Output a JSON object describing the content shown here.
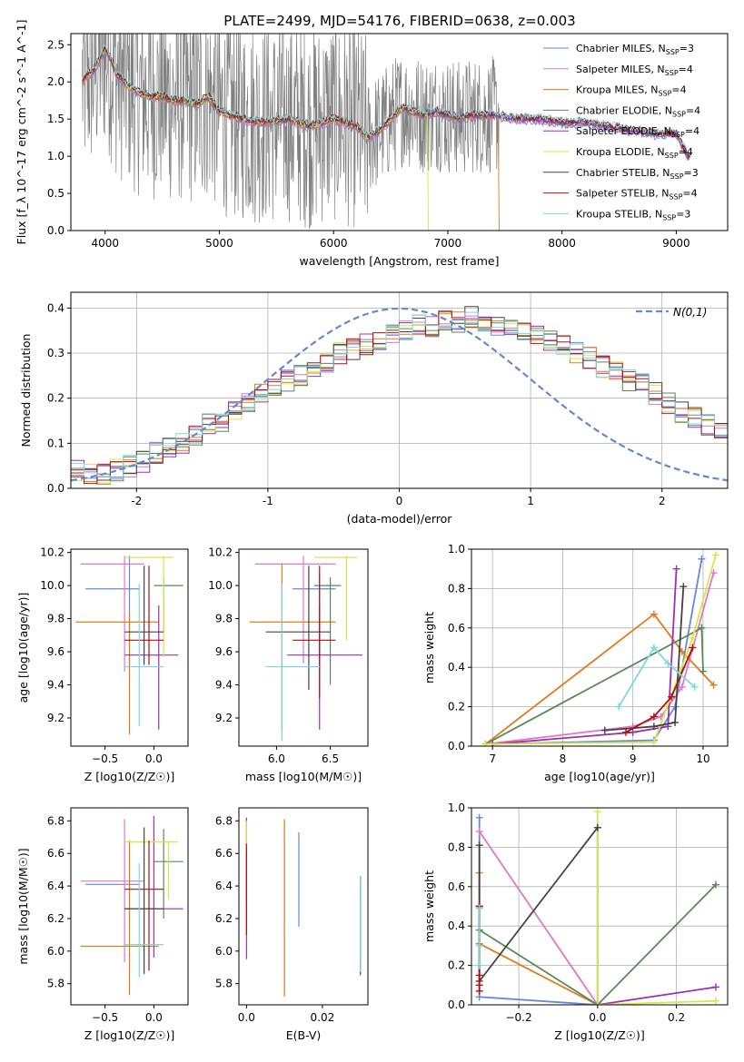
{
  "figure_title": "PLATE=2499, MJD=54176, FIBERID=0638, z=0.003",
  "models": [
    {
      "name": "Chabrier MILES, N_SSP=3",
      "base": "Chabrier MILES, N",
      "sub": "SSP",
      "tail": "=3",
      "color": "#6688dd"
    },
    {
      "name": "Salpeter MILES, N_SSP=4",
      "base": "Salpeter MILES, N",
      "sub": "SSP",
      "tail": "=4",
      "color": "#e377c2"
    },
    {
      "name": "Kroupa MILES, N_SSP=4",
      "base": "Kroupa MILES, N",
      "sub": "SSP",
      "tail": "=4",
      "color": "#e07b1a"
    },
    {
      "name": "Chabrier ELODIE, N_SSP=4",
      "base": "Chabrier ELODIE, N",
      "sub": "SSP",
      "tail": "=4",
      "color": "#5a8a5a"
    },
    {
      "name": "Salpeter ELODIE, N_SSP=4",
      "base": "Salpeter ELODIE, N",
      "sub": "SSP",
      "tail": "=4",
      "color": "#9b30b0"
    },
    {
      "name": "Kroupa ELODIE, N_SSP=4",
      "base": "Kroupa ELODIE, N",
      "sub": "SSP",
      "tail": "=4",
      "color": "#d4e84a"
    },
    {
      "name": "Chabrier STELIB, N_SSP=3",
      "base": "Chabrier STELIB, N",
      "sub": "SSP",
      "tail": "=3",
      "color": "#444444"
    },
    {
      "name": "Salpeter STELIB, N_SSP=4",
      "base": "Salpeter STELIB, N",
      "sub": "SSP",
      "tail": "=4",
      "color": "#b01010"
    },
    {
      "name": "Kroupa STELIB, N_SSP=3",
      "base": "Kroupa STELIB, N",
      "sub": "SSP",
      "tail": "=3",
      "color": "#7dd8dd"
    }
  ],
  "chart_data": [
    {
      "id": "spectrum",
      "type": "line",
      "title": "PLATE=2499, MJD=54176, FIBERID=0638, z=0.003",
      "xlabel": "wavelength [Angstrom, rest frame]",
      "ylabel": "Flux [f_λ 10^-17 erg cm^-2 s^-1 A^-1]",
      "xlim": [
        3700,
        9450
      ],
      "ylim": [
        0,
        2.65
      ],
      "xticks": [
        4000,
        5000,
        6000,
        7000,
        8000,
        9000
      ],
      "yticks": [
        0.0,
        0.5,
        1.0,
        1.5,
        2.0,
        2.5
      ],
      "grid": false,
      "legend": "top-right",
      "data_color": "#808080",
      "model_continuum": {
        "x": [
          3800,
          3850,
          3900,
          3950,
          4000,
          4050,
          4100,
          4200,
          4300,
          4400,
          4500,
          4600,
          4700,
          4800,
          4900,
          5000,
          5200,
          5400,
          5600,
          5800,
          6000,
          6200,
          6300,
          6400,
          6500,
          6600,
          6700,
          6800,
          6900,
          7000,
          7100,
          7200,
          7300,
          7400,
          7600,
          7800,
          8000,
          8200,
          8400,
          8600,
          8800,
          9000,
          9100
        ],
        "y": [
          2.0,
          2.1,
          2.15,
          2.3,
          2.45,
          2.3,
          2.1,
          1.95,
          1.85,
          1.8,
          1.8,
          1.75,
          1.75,
          1.7,
          1.8,
          1.6,
          1.5,
          1.45,
          1.5,
          1.4,
          1.5,
          1.4,
          1.25,
          1.35,
          1.5,
          1.65,
          1.6,
          1.55,
          1.6,
          1.55,
          1.5,
          1.55,
          1.55,
          1.55,
          1.5,
          1.5,
          1.45,
          1.45,
          1.4,
          1.35,
          1.3,
          1.3,
          1.0
        ]
      },
      "data_noise_range": [
        3800,
        7450
      ]
    },
    {
      "id": "residual_hist",
      "type": "bar",
      "xlabel": "(data-model)/error",
      "ylabel": "Normed distribution",
      "xlim": [
        -2.5,
        2.5
      ],
      "ylim": [
        0,
        0.435
      ],
      "xticks": [
        -2,
        -1,
        0,
        1,
        2
      ],
      "yticks": [
        0.0,
        0.1,
        0.2,
        0.3,
        0.4
      ],
      "grid": true,
      "legend": "top-right",
      "reference_label": "N(0,1)",
      "reference_color": "#6688cc",
      "bin_width": 0.1,
      "bin_start": -2.5,
      "base_values": [
        0.04,
        0.03,
        0.03,
        0.04,
        0.05,
        0.06,
        0.08,
        0.09,
        0.1,
        0.12,
        0.14,
        0.15,
        0.17,
        0.19,
        0.21,
        0.22,
        0.24,
        0.25,
        0.27,
        0.28,
        0.3,
        0.31,
        0.32,
        0.33,
        0.34,
        0.35,
        0.36,
        0.36,
        0.37,
        0.37,
        0.38,
        0.37,
        0.36,
        0.36,
        0.35,
        0.34,
        0.33,
        0.32,
        0.3,
        0.29,
        0.27,
        0.26,
        0.24,
        0.23,
        0.21,
        0.19,
        0.17,
        0.16,
        0.14,
        0.13,
        0.12,
        0.1,
        0.09,
        0.08,
        0.07,
        0.06,
        0.05,
        0.05,
        0.04,
        0.04
      ]
    },
    {
      "id": "age_vs_Z",
      "type": "scatter",
      "xlabel": "Z [log10(Z/Z☉)]",
      "ylabel": "age [log10(age/yr)]",
      "xlim": [
        -0.85,
        0.35
      ],
      "ylim": [
        9.03,
        10.22
      ],
      "xticks": [
        -0.5,
        0.0
      ],
      "yticks": [
        9.2,
        9.4,
        9.6,
        9.8,
        10.0,
        10.2
      ],
      "points": [
        {
          "model": 0,
          "x": -0.25,
          "y": 9.98,
          "xerr": [
            0.45,
            0.1
          ],
          "yerr": [
            0.5,
            0.2
          ]
        },
        {
          "model": 1,
          "x": -0.3,
          "y": 10.13,
          "xerr": [
            0.45,
            0.2
          ],
          "yerr": [
            0.65,
            0.05
          ]
        },
        {
          "model": 2,
          "x": -0.25,
          "y": 9.78,
          "xerr": [
            0.55,
            0.3
          ],
          "yerr": [
            0.68,
            0.05
          ]
        },
        {
          "model": 3,
          "x": 0.1,
          "y": 10.0,
          "xerr": [
            0.1,
            0.2
          ],
          "yerr": [
            0.28,
            0.05
          ]
        },
        {
          "model": 4,
          "x": 0.05,
          "y": 9.58,
          "xerr": [
            0.35,
            0.2
          ],
          "yerr": [
            0.45,
            0.3
          ]
        },
        {
          "model": 5,
          "x": 0.1,
          "y": 10.17,
          "xerr": [
            0.4,
            0.1
          ],
          "yerr": [
            0.6,
            0.01
          ]
        },
        {
          "model": 6,
          "x": -0.1,
          "y": 9.72,
          "xerr": [
            0.2,
            0.2
          ],
          "yerr": [
            0.2,
            0.4
          ]
        },
        {
          "model": 7,
          "x": -0.05,
          "y": 9.67,
          "xerr": [
            0.25,
            0.15
          ],
          "yerr": [
            0.15,
            0.45
          ]
        },
        {
          "model": 8,
          "x": -0.15,
          "y": 9.51,
          "xerr": [
            0.15,
            0.25
          ],
          "yerr": [
            0.36,
            0.5
          ]
        }
      ]
    },
    {
      "id": "age_vs_mass",
      "type": "scatter",
      "xlabel": "mass [log10(M/M☉)]",
      "ylabel": "",
      "xlim": [
        5.65,
        6.85
      ],
      "ylim": [
        9.03,
        10.22
      ],
      "xticks": [
        6.0,
        6.5
      ],
      "yticks": [
        9.2,
        9.4,
        9.6,
        9.8,
        10.0,
        10.2
      ],
      "points": [
        {
          "model": 0,
          "x": 6.4,
          "y": 9.98,
          "xerr": [
            0.25,
            0.15
          ],
          "yerr": [
            0.45,
            0.1
          ]
        },
        {
          "model": 1,
          "x": 6.25,
          "y": 10.13,
          "xerr": [
            0.45,
            0.3
          ],
          "yerr": [
            0.6,
            0.05
          ]
        },
        {
          "model": 2,
          "x": 6.05,
          "y": 9.78,
          "xerr": [
            0.3,
            0.5
          ],
          "yerr": [
            0.65,
            0.35
          ]
        },
        {
          "model": 3,
          "x": 6.5,
          "y": 10.0,
          "xerr": [
            0.15,
            0.1
          ],
          "yerr": [
            0.6,
            0.05
          ]
        },
        {
          "model": 4,
          "x": 6.4,
          "y": 9.58,
          "xerr": [
            0.3,
            0.4
          ],
          "yerr": [
            0.45,
            0.3
          ]
        },
        {
          "model": 5,
          "x": 6.65,
          "y": 10.17,
          "xerr": [
            0.3,
            0.1
          ],
          "yerr": [
            0.5,
            0.01
          ]
        },
        {
          "model": 6,
          "x": 6.3,
          "y": 9.72,
          "xerr": [
            0.4,
            0.2
          ],
          "yerr": [
            0.35,
            0.4
          ]
        },
        {
          "model": 7,
          "x": 6.4,
          "y": 9.67,
          "xerr": [
            0.25,
            0.15
          ],
          "yerr": [
            0.35,
            0.45
          ]
        },
        {
          "model": 8,
          "x": 6.05,
          "y": 9.51,
          "xerr": [
            0.15,
            0.35
          ],
          "yerr": [
            0.45,
            0.5
          ]
        }
      ]
    },
    {
      "id": "weight_vs_age",
      "type": "line",
      "xlabel": "age [log10(age/yr)]",
      "ylabel": "mass weight",
      "xlim": [
        6.7,
        10.35
      ],
      "ylim": [
        0,
        1.0
      ],
      "xticks": [
        7,
        8,
        9,
        10
      ],
      "yticks": [
        0.0,
        0.2,
        0.4,
        0.6,
        0.8,
        1.0
      ],
      "grid": true,
      "series": [
        {
          "model": 0,
          "x": [
            7.0,
            9.3,
            9.6,
            9.98
          ],
          "y": [
            0.01,
            0.03,
            0.2,
            0.95
          ]
        },
        {
          "model": 1,
          "x": [
            6.9,
            9.0,
            9.4,
            9.7,
            10.15
          ],
          "y": [
            0.01,
            0.1,
            0.15,
            0.3,
            0.88
          ]
        },
        {
          "model": 2,
          "x": [
            6.9,
            9.3,
            9.7,
            10.15
          ],
          "y": [
            0.01,
            0.67,
            0.48,
            0.31
          ]
        },
        {
          "model": 3,
          "x": [
            6.9,
            9.98,
            9.98,
            10.0
          ],
          "y": [
            0.01,
            0.6,
            0.6,
            0.38
          ]
        },
        {
          "model": 4,
          "x": [
            7.0,
            9.0,
            9.5,
            9.62
          ],
          "y": [
            0.01,
            0.07,
            0.1,
            0.9
          ]
        },
        {
          "model": 5,
          "x": [
            6.9,
            9.3,
            9.85,
            10.18
          ],
          "y": [
            0.01,
            0.02,
            0.55,
            0.97
          ]
        },
        {
          "model": 6,
          "x": [
            8.6,
            9.3,
            9.6,
            9.72
          ],
          "y": [
            0.08,
            0.1,
            0.12,
            0.81
          ]
        },
        {
          "model": 7,
          "x": [
            8.9,
            9.3,
            9.55,
            9.85
          ],
          "y": [
            0.07,
            0.15,
            0.25,
            0.5
          ]
        },
        {
          "model": 8,
          "x": [
            8.8,
            9.3,
            9.5,
            9.88
          ],
          "y": [
            0.2,
            0.5,
            0.42,
            0.3
          ]
        }
      ]
    },
    {
      "id": "mass_vs_Z",
      "type": "scatter",
      "xlabel": "Z [log10(Z/Z☉)]",
      "ylabel": "mass [log10(M/M☉)]",
      "xlim": [
        -0.85,
        0.35
      ],
      "ylim": [
        5.67,
        6.88
      ],
      "xticks": [
        -0.5,
        0.0
      ],
      "yticks": [
        5.8,
        6.0,
        6.2,
        6.4,
        6.6,
        6.8
      ],
      "points": [
        {
          "model": 0,
          "x": -0.25,
          "y": 6.41,
          "xerr": [
            0.45,
            0.1
          ],
          "yerr": [
            0.25,
            0.2
          ]
        },
        {
          "model": 1,
          "x": -0.3,
          "y": 6.43,
          "xerr": [
            0.45,
            0.2
          ],
          "yerr": [
            0.5,
            0.38
          ]
        },
        {
          "model": 2,
          "x": -0.25,
          "y": 6.03,
          "xerr": [
            0.5,
            0.3
          ],
          "yerr": [
            0.3,
            0.65
          ]
        },
        {
          "model": 3,
          "x": 0.1,
          "y": 6.55,
          "xerr": [
            0.1,
            0.2
          ],
          "yerr": [
            0.35,
            0.2
          ]
        },
        {
          "model": 4,
          "x": 0.0,
          "y": 6.26,
          "xerr": [
            0.3,
            0.3
          ],
          "yerr": [
            0.3,
            0.57
          ]
        },
        {
          "model": 5,
          "x": 0.15,
          "y": 6.67,
          "xerr": [
            0.45,
            0.1
          ],
          "yerr": [
            0.35,
            0.01
          ]
        },
        {
          "model": 6,
          "x": -0.1,
          "y": 6.26,
          "xerr": [
            0.2,
            0.2
          ],
          "yerr": [
            0.4,
            0.5
          ]
        },
        {
          "model": 7,
          "x": -0.05,
          "y": 6.38,
          "xerr": [
            0.25,
            0.15
          ],
          "yerr": [
            0.5,
            0.3
          ]
        },
        {
          "model": 8,
          "x": -0.15,
          "y": 6.04,
          "xerr": [
            0.15,
            0.25
          ],
          "yerr": [
            0.2,
            0.5
          ]
        }
      ]
    },
    {
      "id": "mass_vs_ebv",
      "type": "scatter",
      "xlabel": "E(B-V)",
      "ylabel": "",
      "xlim": [
        -0.002,
        0.032
      ],
      "ylim": [
        5.67,
        6.88
      ],
      "xticks": [
        0.0,
        0.02
      ],
      "yticks": [
        5.8,
        6.0,
        6.2,
        6.4,
        6.6,
        6.8
      ],
      "points": [
        {
          "model": 0,
          "x": 0.0138,
          "y": 6.45,
          "xerr": [
            0,
            0
          ],
          "yerr": [
            0.3,
            0.28
          ]
        },
        {
          "model": 1,
          "x": 0.0,
          "y": 6.6,
          "xerr": [
            0,
            0
          ],
          "yerr": [
            0.3,
            0.2
          ]
        },
        {
          "model": 2,
          "x": 0.01,
          "y": 6.25,
          "xerr": [
            0,
            0
          ],
          "yerr": [
            0.53,
            0.56
          ]
        },
        {
          "model": 3,
          "x": 0.03,
          "y": 6.15,
          "xerr": [
            0,
            0
          ],
          "yerr": [
            0.3,
            0.31
          ]
        },
        {
          "model": 4,
          "x": 0.0,
          "y": 6.4,
          "xerr": [
            0,
            0
          ],
          "yerr": [
            0.45,
            0.42
          ]
        },
        {
          "model": 5,
          "x": 0.0,
          "y": 6.7,
          "xerr": [
            0,
            0
          ],
          "yerr": [
            0.1,
            0.1
          ]
        },
        {
          "model": 6,
          "x": 0.03,
          "y": 6.16,
          "xerr": [
            0,
            0
          ],
          "yerr": [
            0.3,
            0.3
          ]
        },
        {
          "model": 7,
          "x": 0.0,
          "y": 6.38,
          "xerr": [
            0,
            0
          ],
          "yerr": [
            0.28,
            0.28
          ]
        },
        {
          "model": 8,
          "x": 0.03,
          "y": 6.17,
          "xerr": [
            0,
            0
          ],
          "yerr": [
            0.3,
            0.29
          ]
        }
      ]
    },
    {
      "id": "weight_vs_Z",
      "type": "line",
      "xlabel": "Z [log10(Z/Z☉)]",
      "ylabel": "mass weight",
      "xlim": [
        -0.32,
        0.33
      ],
      "ylim": [
        0,
        1.0
      ],
      "xticks": [
        -0.2,
        0.0,
        0.2
      ],
      "yticks": [
        0.0,
        0.2,
        0.4,
        0.6,
        0.8,
        1.0
      ],
      "grid": true,
      "series": [
        {
          "model": 0,
          "x": [
            -0.3,
            -0.3,
            0.0
          ],
          "y": [
            0.95,
            0.04,
            0.0
          ]
        },
        {
          "model": 1,
          "x": [
            -0.3,
            0.0
          ],
          "y": [
            0.88,
            0.0
          ]
        },
        {
          "model": 2,
          "x": [
            -0.3,
            -0.3,
            0.0
          ],
          "y": [
            0.67,
            0.31,
            0.0
          ]
        },
        {
          "model": 3,
          "x": [
            -0.3,
            0.0,
            0.3
          ],
          "y": [
            0.38,
            0.0,
            0.61
          ]
        },
        {
          "model": 4,
          "x": [
            0.0,
            0.0,
            0.3
          ],
          "y": [
            0.9,
            0.0,
            0.09
          ]
        },
        {
          "model": 5,
          "x": [
            0.0,
            0.0,
            0.3
          ],
          "y": [
            0.98,
            0.0,
            0.02
          ]
        },
        {
          "model": 6,
          "x": [
            -0.3,
            -0.3,
            -0.3,
            0.0
          ],
          "y": [
            0.81,
            0.5,
            0.12,
            0.9
          ]
        },
        {
          "model": 7,
          "x": [
            -0.3,
            -0.3,
            -0.3,
            -0.3
          ],
          "y": [
            0.5,
            0.15,
            0.1,
            0.07
          ]
        },
        {
          "model": 8,
          "x": [
            -0.3,
            -0.3,
            -0.3
          ],
          "y": [
            0.49,
            0.3,
            0.2
          ]
        }
      ]
    }
  ]
}
